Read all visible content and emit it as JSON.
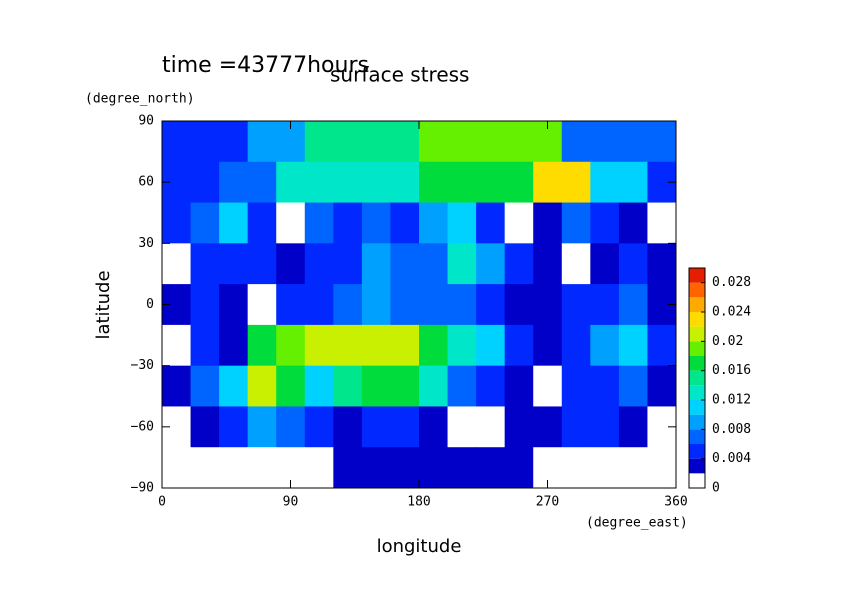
{
  "chart_data": {
    "type": "contour",
    "title": "surface stress",
    "subtitle": "time =43777hours",
    "y_unit": "(degree_north)",
    "x_unit": "(degree_east)",
    "ylabel": "latitude",
    "xlabel": "longitude",
    "xlim": [
      0,
      360
    ],
    "ylim": [
      -90,
      90
    ],
    "xticks": [
      0,
      90,
      180,
      270,
      360
    ],
    "yticks": [
      {
        "value": -90,
        "label": "−90"
      },
      {
        "value": -60,
        "label": "−60"
      },
      {
        "value": -30,
        "label": "−30"
      },
      0,
      30,
      60,
      90
    ],
    "x": [
      10,
      30,
      50,
      70,
      90,
      110,
      130,
      150,
      170,
      190,
      210,
      230,
      250,
      270,
      290,
      310,
      330,
      350
    ],
    "y": [
      80,
      60,
      40,
      20,
      0,
      -20,
      -40,
      -60,
      -80
    ],
    "z": [
      [
        0.005,
        0.005,
        0.005,
        0.008,
        0.008,
        0.014,
        0.014,
        0.014,
        0.014,
        0.018,
        0.018,
        0.018,
        0.018,
        0.018,
        0.006,
        0.006,
        0.006,
        0.006
      ],
      [
        0.004,
        0.004,
        0.006,
        0.006,
        0.012,
        0.012,
        0.012,
        0.012,
        0.012,
        0.016,
        0.016,
        0.016,
        0.016,
        0.022,
        0.022,
        0.01,
        0.01,
        0.004
      ],
      [
        0.004,
        0.006,
        0.01,
        0.004,
        0.001,
        0.006,
        0.004,
        0.006,
        0.005,
        0.008,
        0.01,
        0.004,
        0.001,
        0.002,
        0.006,
        0.004,
        0.003,
        0.001
      ],
      [
        0.001,
        0.004,
        0.005,
        0.004,
        0.003,
        0.004,
        0.004,
        0.008,
        0.006,
        0.006,
        0.012,
        0.008,
        0.004,
        0.002,
        0.001,
        0.003,
        0.004,
        0.003
      ],
      [
        0.002,
        0.004,
        0.003,
        0.001,
        0.005,
        0.004,
        0.006,
        0.008,
        0.007,
        0.006,
        0.006,
        0.005,
        0.003,
        0.002,
        0.004,
        0.004,
        0.006,
        0.002
      ],
      [
        0.001,
        0.004,
        0.003,
        0.016,
        0.018,
        0.02,
        0.02,
        0.02,
        0.02,
        0.016,
        0.012,
        0.01,
        0.004,
        0.003,
        0.004,
        0.008,
        0.01,
        0.004
      ],
      [
        0.002,
        0.006,
        0.01,
        0.02,
        0.016,
        0.01,
        0.014,
        0.016,
        0.016,
        0.012,
        0.006,
        0.004,
        0.002,
        0.001,
        0.004,
        0.004,
        0.006,
        0.003
      ],
      [
        0.001,
        0.003,
        0.005,
        0.008,
        0.006,
        0.004,
        0.003,
        0.004,
        0.004,
        0.002,
        0.001,
        0.001,
        0.003,
        0.003,
        0.004,
        0.004,
        0.003,
        0.001
      ],
      [
        0.001,
        0.001,
        0.001,
        0.001,
        0.001,
        0.001,
        0.003,
        0.003,
        0.003,
        0.003,
        0.003,
        0.003,
        0.003,
        0.001,
        0.001,
        0.001,
        0.001,
        0.001
      ]
    ],
    "levels": [
      0,
      0.002,
      0.004,
      0.006,
      0.008,
      0.01,
      0.012,
      0.014,
      0.016,
      0.018,
      0.02,
      0.022,
      0.024,
      0.026,
      0.028
    ],
    "colors": [
      "#ffffff",
      "#0000c8",
      "#0028ff",
      "#0064ff",
      "#00a0ff",
      "#00d2ff",
      "#00e6c8",
      "#00e68c",
      "#00dc3c",
      "#64f000",
      "#c8f000",
      "#ffdc00",
      "#ffaa00",
      "#ff6400",
      "#e61e00"
    ],
    "clim": [
      0,
      0.03
    ],
    "cticks": [
      0,
      0.004,
      0.008,
      0.012,
      0.016,
      0.02,
      0.024,
      0.028
    ]
  }
}
